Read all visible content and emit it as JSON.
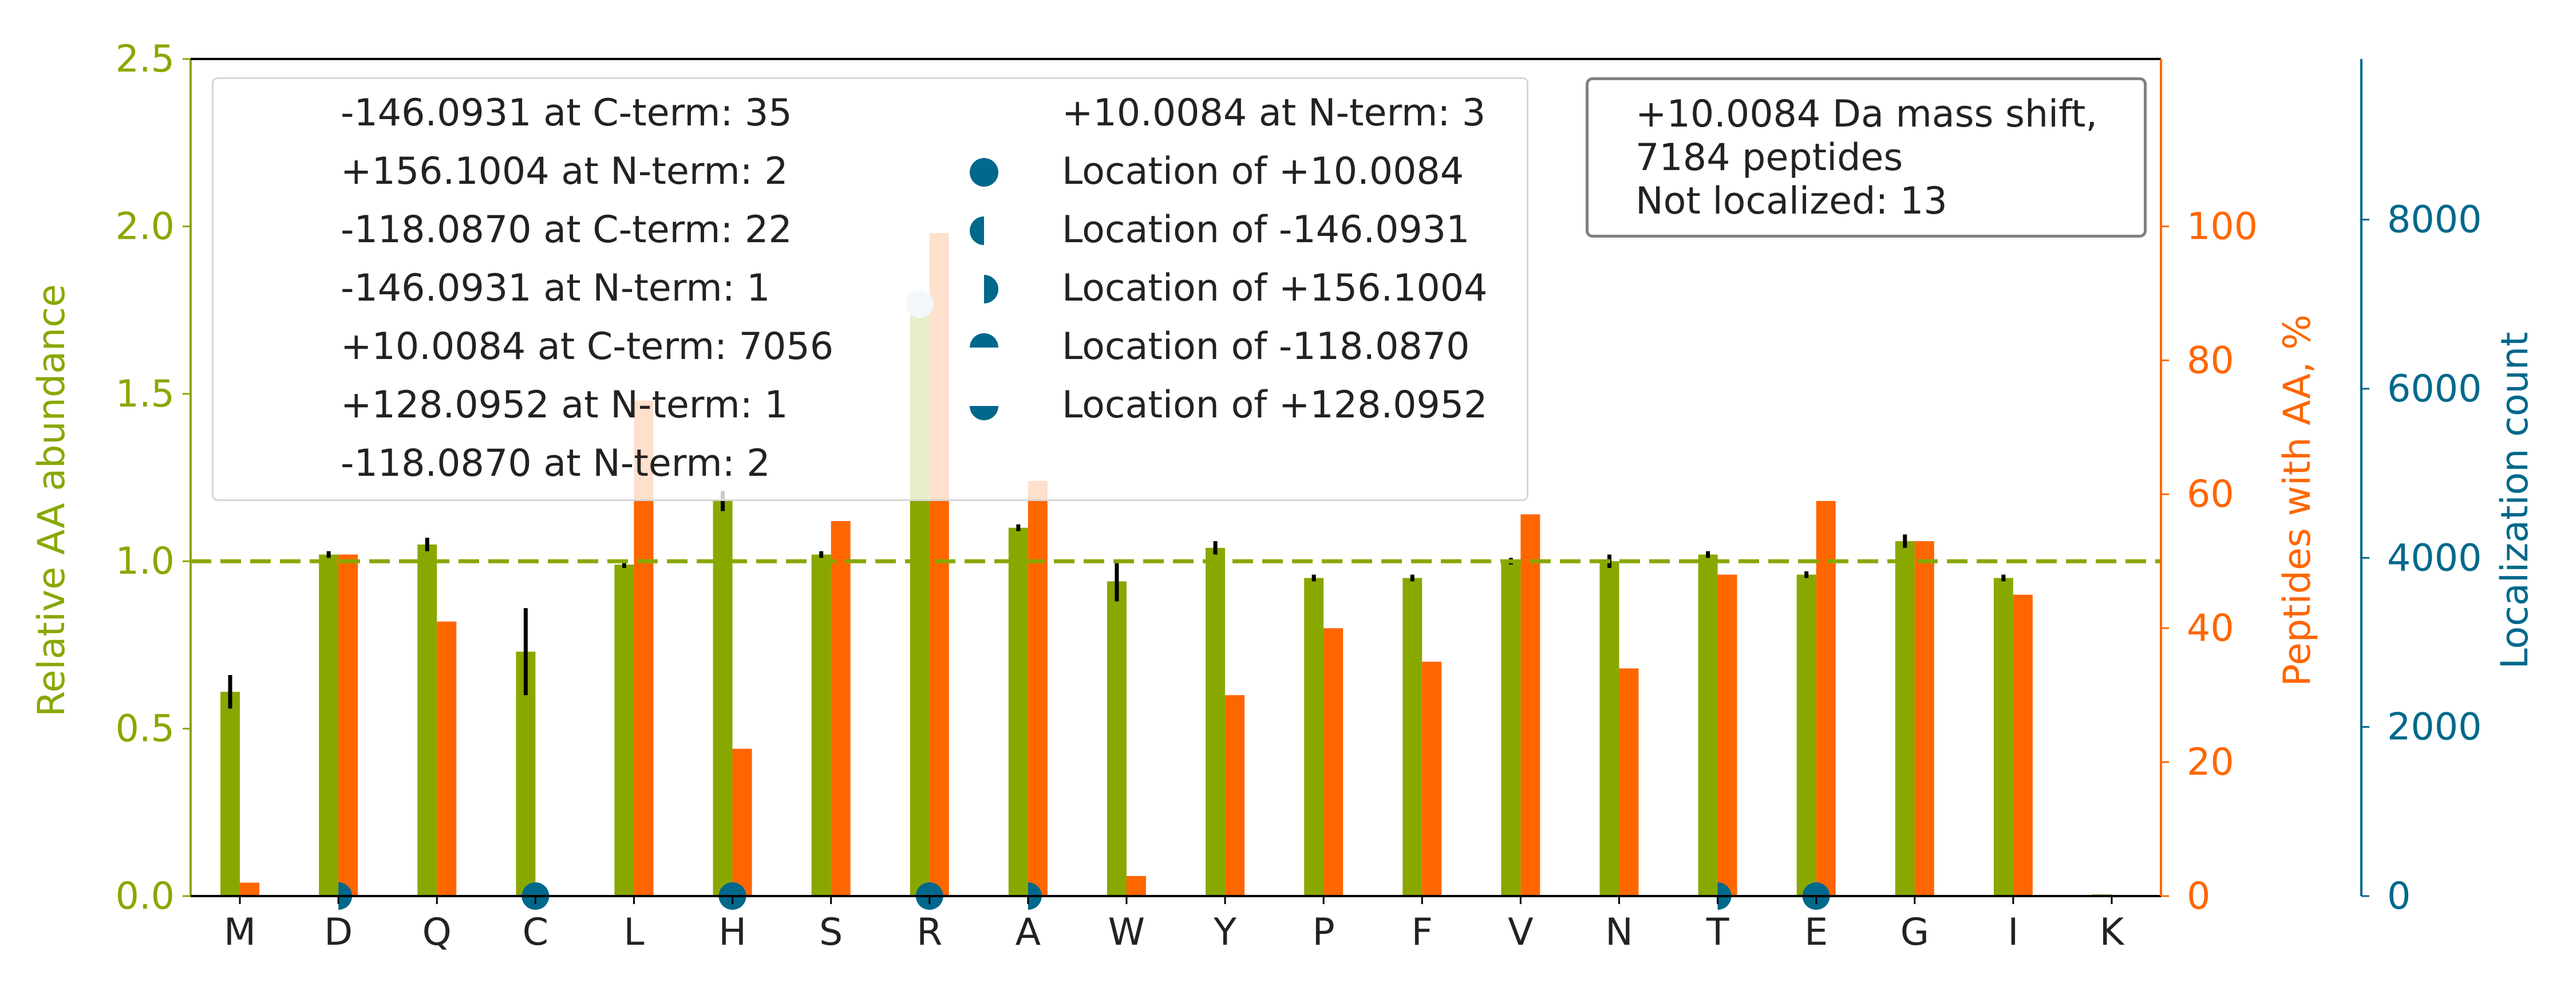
{
  "chart_data": {
    "type": "bar",
    "categories": [
      "M",
      "D",
      "Q",
      "C",
      "L",
      "H",
      "S",
      "R",
      "A",
      "W",
      "Y",
      "P",
      "F",
      "V",
      "N",
      "T",
      "E",
      "G",
      "I",
      "K"
    ],
    "series": [
      {
        "axis": "left",
        "color": "#88a800",
        "values": [
          0.61,
          1.02,
          1.05,
          0.73,
          0.99,
          1.18,
          1.02,
          1.79,
          1.1,
          0.94,
          1.04,
          0.95,
          0.95,
          1.0,
          1.0,
          1.02,
          0.96,
          1.06,
          0.95,
          0.005
        ],
        "errors": [
          0.05,
          0.01,
          0.02,
          0.13,
          0.01,
          0.03,
          0.01,
          0.0,
          0.01,
          0.06,
          0.02,
          0.01,
          0.01,
          0.01,
          0.02,
          0.01,
          0.01,
          0.02,
          0.01,
          0.0
        ]
      },
      {
        "axis": "right",
        "color": "#ff6600",
        "values": [
          2,
          51,
          41,
          0,
          74,
          22,
          56,
          99,
          62,
          3,
          30,
          40,
          35,
          57,
          34,
          48,
          59,
          53,
          45,
          0
        ]
      }
    ],
    "localization": {
      "color": "#00688b",
      "light_color": "#c2dce6",
      "markers": [
        {
          "category": "D",
          "count": 0,
          "style": "right-half"
        },
        {
          "category": "C",
          "count": 0,
          "style": "full"
        },
        {
          "category": "H",
          "count": 0,
          "style": "full"
        },
        {
          "category": "R",
          "count": 0,
          "style": "full"
        },
        {
          "category": "R",
          "count": 7000,
          "style": "light"
        },
        {
          "category": "A",
          "count": 0,
          "style": "right-half"
        },
        {
          "category": "T",
          "count": 0,
          "style": "right-half"
        },
        {
          "category": "E",
          "count": 0,
          "style": "full"
        }
      ]
    },
    "y_left": {
      "label": "Relative AA abundance",
      "color": "#88a800",
      "ylim": [
        0,
        2.5
      ],
      "ticks": [
        "0.0",
        "0.5",
        "1.0",
        "1.5",
        "2.0",
        "2.5"
      ]
    },
    "y_right": {
      "label": "Peptides with AA, %",
      "color": "#ff6600",
      "ylim": [
        0,
        125
      ],
      "ticks": [
        "0",
        "20",
        "40",
        "60",
        "80",
        "100"
      ]
    },
    "y_right2": {
      "label": "Localization count",
      "color": "#00688b",
      "ylim": [
        0,
        9900
      ],
      "ticks": [
        "0",
        "2000",
        "4000",
        "6000",
        "8000"
      ]
    },
    "reference_line": 1.0,
    "grid": false
  },
  "legend": {
    "left_column": [
      "-146.0931 at C-term: 35",
      "+156.1004 at N-term: 2",
      "-118.0870 at C-term: 22",
      "-146.0931 at N-term: 1",
      "+10.0084 at C-term: 7056",
      "+128.0952 at N-term: 1",
      "-118.0870 at N-term: 2"
    ],
    "right_column": [
      {
        "label": "+10.0084 at N-term: 3",
        "marker": "none"
      },
      {
        "label": "Location of +10.0084",
        "marker": "full"
      },
      {
        "label": "Location of -146.0931",
        "marker": "left-half"
      },
      {
        "label": "Location of +156.1004",
        "marker": "right-half"
      },
      {
        "label": "Location of -118.0870",
        "marker": "top-half"
      },
      {
        "label": "Location of +128.0952",
        "marker": "bottom-half"
      }
    ]
  },
  "info_box": {
    "lines": [
      "+10.0084 Da mass shift,",
      "7184 peptides",
      "Not localized: 13"
    ]
  }
}
